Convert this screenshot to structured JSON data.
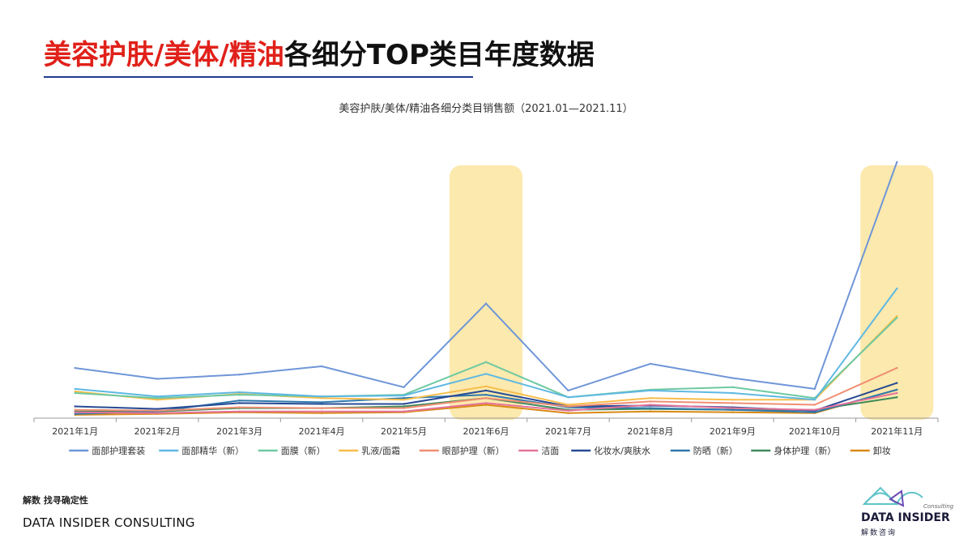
{
  "page": {
    "title_red": "美容护肤/美体/精油",
    "title_black": "各细分TOP类目年度数据",
    "footer_slogan": "解数 找寻确定性",
    "footer_company": "DATA INSIDER CONSULTING",
    "logo_name": "DATA INSIDER",
    "logo_cn": "解数咨询",
    "logo_consulting": "Consulting"
  },
  "chart_data": {
    "type": "line",
    "title": "美容护肤/美体/精油各细分类目销售额（2021.01—2021.11）",
    "xlabel": "",
    "ylabel": "",
    "categories": [
      "2021年1月",
      "2021年2月",
      "2021年3月",
      "2021年4月",
      "2021年5月",
      "2021年6月",
      "2021年7月",
      "2021年8月",
      "2021年9月",
      "2021年10月",
      "2021年11月"
    ],
    "ylim": [
      0,
      310
    ],
    "grid": false,
    "legend": "bottom",
    "highlight_categories": [
      "2021年6月",
      "2021年11月"
    ],
    "highlight_color": "#fce9ad",
    "series": [
      {
        "name": "面部护理套装",
        "color": "#6f96d8",
        "values": [
          60,
          47,
          52,
          62,
          37,
          137,
          33,
          65,
          48,
          35,
          306
        ]
      },
      {
        "name": "面部精华（新）",
        "color": "#5eb8e2",
        "values": [
          35,
          26,
          31,
          26,
          27,
          53,
          25,
          33,
          30,
          22,
          155
        ]
      },
      {
        "name": "面膜（新）",
        "color": "#6ec9a2",
        "values": [
          30,
          24,
          28,
          26,
          28,
          67,
          25,
          34,
          37,
          24,
          120
        ]
      },
      {
        "name": "乳液/面霜",
        "color": "#f7bd4a",
        "values": [
          32,
          22,
          29,
          24,
          22,
          38,
          16,
          24,
          22,
          22,
          122
        ]
      },
      {
        "name": "眼部护理（新）",
        "color": "#ef8e72",
        "values": [
          10,
          9,
          13,
          12,
          12,
          24,
          14,
          20,
          18,
          16,
          60
        ]
      },
      {
        "name": "洁面",
        "color": "#e4739a",
        "values": [
          7,
          6,
          8,
          8,
          8,
          18,
          9,
          16,
          12,
          10,
          30
        ]
      },
      {
        "name": "化妆水/爽肤水",
        "color": "#274a94",
        "values": [
          14,
          11,
          18,
          17,
          17,
          33,
          14,
          15,
          13,
          9,
          42
        ]
      },
      {
        "name": "防晒（新）",
        "color": "#2f79ad",
        "values": [
          5,
          8,
          21,
          19,
          24,
          28,
          13,
          12,
          10,
          7,
          34
        ]
      },
      {
        "name": "身体护理（新）",
        "color": "#3f8a5a",
        "values": [
          8,
          8,
          12,
          12,
          14,
          24,
          10,
          11,
          10,
          10,
          25
        ]
      },
      {
        "name": "卸妆",
        "color": "#d98a15",
        "values": [
          4,
          5,
          7,
          6,
          7,
          16,
          6,
          8,
          7,
          6,
          34
        ]
      }
    ]
  }
}
